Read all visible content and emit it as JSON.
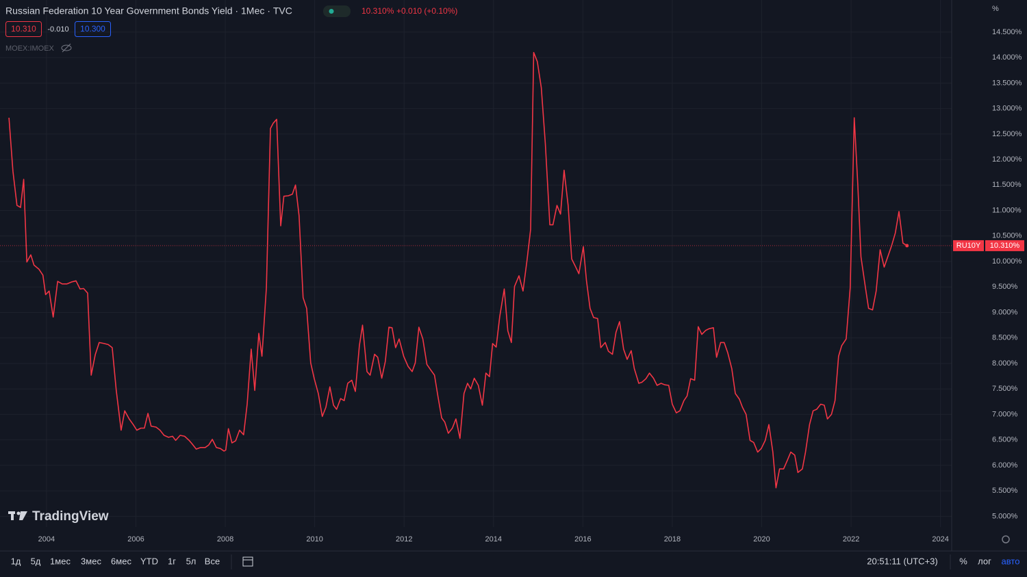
{
  "header": {
    "title": "Russian Federation 10 Year Government Bonds Yield · 1Мес · TVC",
    "quote": "10.310%",
    "change": "+0.010 (+0.10%)",
    "bid": "10.310",
    "spread": "-0.010",
    "ask": "10.300",
    "overlay": "MOEX:IMOEX"
  },
  "logo": "TradingView",
  "chart_data": {
    "type": "line",
    "ylabel": "%",
    "grid": true,
    "log_scale": false,
    "x": [
      2003.16,
      2003.25,
      2003.34,
      2003.42,
      2003.49,
      2003.56,
      2003.65,
      2003.72,
      2003.83,
      2003.92,
      2003.98,
      2004.06,
      2004.15,
      2004.25,
      2004.35,
      2004.46,
      2004.57,
      2004.66,
      2004.75,
      2004.83,
      2004.92,
      2005.0,
      2005.09,
      2005.18,
      2005.29,
      2005.38,
      2005.47,
      2005.56,
      2005.67,
      2005.75,
      2005.85,
      2005.94,
      2006.02,
      2006.11,
      2006.19,
      2006.27,
      2006.34,
      2006.45,
      2006.54,
      2006.63,
      2006.73,
      2006.82,
      2006.89,
      2006.99,
      2007.09,
      2007.19,
      2007.26,
      2007.35,
      2007.45,
      2007.55,
      2007.63,
      2007.71,
      2007.8,
      2007.89,
      2007.97,
      2008.01,
      2008.07,
      2008.15,
      2008.23,
      2008.32,
      2008.41,
      2008.49,
      2008.58,
      2008.66,
      2008.75,
      2008.82,
      2008.92,
      2009.01,
      2009.07,
      2009.15,
      2009.24,
      2009.31,
      2009.41,
      2009.5,
      2009.57,
      2009.65,
      2009.74,
      2009.82,
      2009.91,
      2009.99,
      2010.08,
      2010.17,
      2010.25,
      2010.34,
      2010.42,
      2010.49,
      2010.58,
      2010.66,
      2010.74,
      2010.83,
      2010.91,
      2011.0,
      2011.07,
      2011.17,
      2011.24,
      2011.34,
      2011.41,
      2011.5,
      2011.58,
      2011.66,
      2011.73,
      2011.81,
      2011.89,
      2011.99,
      2012.09,
      2012.18,
      2012.25,
      2012.33,
      2012.42,
      2012.51,
      2012.59,
      2012.68,
      2012.76,
      2012.84,
      2012.91,
      2012.99,
      2013.08,
      2013.16,
      2013.25,
      2013.34,
      2013.42,
      2013.49,
      2013.57,
      2013.66,
      2013.75,
      2013.83,
      2013.91,
      2013.98,
      2014.06,
      2014.14,
      2014.24,
      2014.32,
      2014.4,
      2014.47,
      2014.57,
      2014.66,
      2014.75,
      2014.83,
      2014.9,
      2014.98,
      2015.07,
      2015.16,
      2015.26,
      2015.33,
      2015.42,
      2015.5,
      2015.58,
      2015.67,
      2015.75,
      2015.84,
      2015.91,
      2016.01,
      2016.08,
      2016.16,
      2016.24,
      2016.33,
      2016.4,
      2016.5,
      2016.57,
      2016.66,
      2016.74,
      2016.82,
      2016.91,
      2016.99,
      2017.08,
      2017.15,
      2017.25,
      2017.32,
      2017.41,
      2017.49,
      2017.58,
      2017.66,
      2017.75,
      2017.83,
      2017.92,
      2018.0,
      2018.09,
      2018.17,
      2018.26,
      2018.33,
      2018.41,
      2018.5,
      2018.58,
      2018.66,
      2018.75,
      2018.82,
      2018.92,
      2018.99,
      2019.08,
      2019.16,
      2019.24,
      2019.33,
      2019.41,
      2019.5,
      2019.57,
      2019.65,
      2019.74,
      2019.82,
      2019.91,
      2019.99,
      2020.08,
      2020.16,
      2020.25,
      2020.32,
      2020.4,
      2020.49,
      2020.57,
      2020.65,
      2020.74,
      2020.81,
      2020.91,
      2020.98,
      2021.07,
      2021.15,
      2021.23,
      2021.32,
      2021.4,
      2021.47,
      2021.56,
      2021.64,
      2021.72,
      2021.79,
      2021.89,
      2021.98,
      2022.07,
      2022.15,
      2022.22,
      2022.32,
      2022.39,
      2022.48,
      2022.56,
      2022.65,
      2022.74,
      2022.82,
      2022.91,
      2022.99,
      2023.07,
      2023.16,
      2023.25
    ],
    "series": [
      {
        "name": "RU10Y",
        "color": "#f23645",
        "values": [
          12.82,
          11.77,
          11.1,
          11.06,
          11.61,
          9.99,
          10.13,
          9.93,
          9.85,
          9.73,
          9.35,
          9.42,
          8.91,
          9.61,
          9.56,
          9.56,
          9.6,
          9.62,
          9.46,
          9.47,
          9.38,
          7.77,
          8.17,
          8.41,
          8.39,
          8.37,
          8.31,
          7.47,
          6.69,
          7.07,
          6.91,
          6.8,
          6.69,
          6.73,
          6.73,
          7.02,
          6.77,
          6.75,
          6.69,
          6.59,
          6.55,
          6.57,
          6.49,
          6.59,
          6.57,
          6.49,
          6.42,
          6.32,
          6.35,
          6.35,
          6.4,
          6.51,
          6.35,
          6.33,
          6.28,
          6.3,
          6.72,
          6.44,
          6.48,
          6.69,
          6.6,
          7.2,
          8.28,
          7.47,
          8.59,
          8.14,
          9.49,
          12.61,
          12.71,
          12.79,
          10.7,
          11.28,
          11.29,
          11.32,
          11.5,
          10.9,
          9.29,
          9.08,
          8.01,
          7.7,
          7.41,
          6.96,
          7.14,
          7.54,
          7.18,
          7.1,
          7.31,
          7.27,
          7.61,
          7.67,
          7.45,
          8.35,
          8.75,
          7.84,
          7.77,
          8.18,
          8.12,
          7.71,
          8.04,
          8.71,
          8.7,
          8.31,
          8.48,
          8.14,
          7.94,
          7.84,
          8.01,
          8.71,
          8.48,
          7.98,
          7.88,
          7.77,
          7.34,
          6.93,
          6.85,
          6.63,
          6.73,
          6.91,
          6.53,
          7.41,
          7.61,
          7.5,
          7.71,
          7.57,
          7.18,
          7.81,
          7.74,
          8.39,
          8.32,
          8.92,
          9.46,
          8.64,
          8.41,
          9.51,
          9.72,
          9.42,
          10.03,
          10.63,
          14.1,
          13.92,
          13.41,
          12.31,
          10.72,
          10.72,
          11.1,
          10.93,
          11.79,
          11.1,
          10.05,
          9.89,
          9.76,
          10.29,
          9.62,
          9.08,
          8.9,
          8.88,
          8.31,
          8.41,
          8.24,
          8.18,
          8.61,
          8.82,
          8.28,
          8.08,
          8.25,
          7.9,
          7.61,
          7.63,
          7.7,
          7.81,
          7.71,
          7.57,
          7.61,
          7.58,
          7.57,
          7.2,
          7.03,
          7.07,
          7.27,
          7.36,
          7.7,
          7.67,
          8.72,
          8.57,
          8.65,
          8.68,
          8.7,
          8.12,
          8.41,
          8.41,
          8.21,
          7.9,
          7.41,
          7.3,
          7.14,
          7.0,
          6.49,
          6.45,
          6.26,
          6.33,
          6.49,
          6.8,
          6.26,
          5.56,
          5.93,
          5.93,
          6.09,
          6.26,
          6.2,
          5.86,
          5.93,
          6.26,
          6.8,
          7.07,
          7.1,
          7.2,
          7.18,
          6.91,
          7.0,
          7.27,
          8.14,
          8.35,
          8.48,
          9.49,
          12.82,
          11.5,
          10.09,
          9.49,
          9.08,
          9.05,
          9.42,
          10.23,
          9.89,
          10.09,
          10.32,
          10.56,
          10.98,
          10.36,
          10.31
        ]
      }
    ],
    "price_line": {
      "value": 10.31,
      "label": "10.310%"
    },
    "xlim": [
      2002.96,
      2024.25
    ],
    "xticks": [
      2004,
      2006,
      2008,
      2010,
      2012,
      2014,
      2016,
      2018,
      2020,
      2022,
      2024
    ],
    "ylim": [
      4.79,
      15.13
    ],
    "yticks": [
      {
        "value": 5,
        "label": "5.000%"
      },
      {
        "value": 5.5,
        "label": "5.500%"
      },
      {
        "value": 6,
        "label": "6.000%"
      },
      {
        "value": 6.5,
        "label": "6.500%"
      },
      {
        "value": 7,
        "label": "7.000%"
      },
      {
        "value": 7.5,
        "label": "7.500%"
      },
      {
        "value": 8,
        "label": "8.000%"
      },
      {
        "value": 8.5,
        "label": "8.500%"
      },
      {
        "value": 9,
        "label": "9.000%"
      },
      {
        "value": 9.5,
        "label": "9.500%"
      },
      {
        "value": 10,
        "label": "10.000%"
      },
      {
        "value": 10.5,
        "label": "10.500%"
      },
      {
        "value": 11,
        "label": "11.000%"
      },
      {
        "value": 11.5,
        "label": "11.500%"
      },
      {
        "value": 12,
        "label": "12.000%"
      },
      {
        "value": 12.5,
        "label": "12.500%"
      },
      {
        "value": 13,
        "label": "13.000%"
      },
      {
        "value": 13.5,
        "label": "13.500%"
      },
      {
        "value": 14,
        "label": "14.000%"
      },
      {
        "value": 14.5,
        "label": "14.500%"
      }
    ]
  },
  "toolbar": {
    "ranges": [
      "1д",
      "5д",
      "1мес",
      "3мес",
      "6мес",
      "YTD",
      "1г",
      "5л",
      "Все"
    ],
    "time": "20:51:11 (UTC+3)",
    "percent": "%",
    "log": "лог",
    "auto": "авто"
  }
}
